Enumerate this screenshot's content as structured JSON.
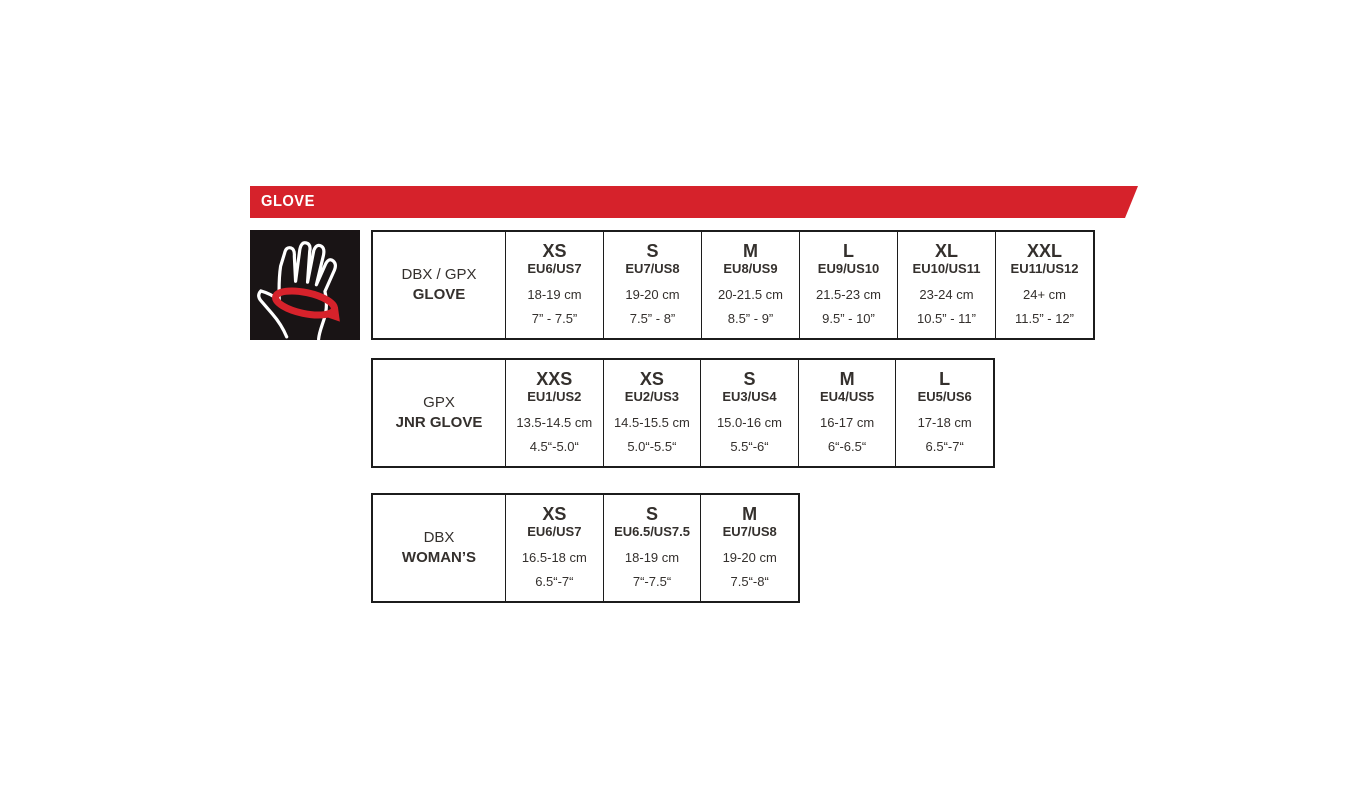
{
  "banner": {
    "label": "GLOVE",
    "bg_color": "#d6222b",
    "text_color": "#ffffff"
  },
  "icon": {
    "name": "hand-measurement-icon",
    "bg_color": "#191415",
    "hand_color": "#ffffff",
    "band_color": "#d6222b"
  },
  "tables": [
    {
      "label_top": "DBX / GPX",
      "label_bottom": "GLOVE",
      "columns": [
        {
          "size": "XS",
          "euus": "EU6/US7",
          "cm": "18-19 cm",
          "inch": "7” - 7.5”"
        },
        {
          "size": "S",
          "euus": "EU7/US8",
          "cm": "19-20 cm",
          "inch": "7.5” - 8”"
        },
        {
          "size": "M",
          "euus": "EU8/US9",
          "cm": "20-21.5 cm",
          "inch": "8.5” - 9”"
        },
        {
          "size": "L",
          "euus": "EU9/US10",
          "cm": "21.5-23 cm",
          "inch": "9.5” - 10”"
        },
        {
          "size": "XL",
          "euus": "EU10/US11",
          "cm": "23-24 cm",
          "inch": "10.5” - 11”"
        },
        {
          "size": "XXL",
          "euus": "EU11/US12",
          "cm": "24+ cm",
          "inch": "11.5” - 12”"
        }
      ]
    },
    {
      "label_top": "GPX",
      "label_bottom": "JNR GLOVE",
      "columns": [
        {
          "size": "XXS",
          "euus": "EU1/US2",
          "cm": "13.5-14.5 cm",
          "inch": "4.5“-5.0“"
        },
        {
          "size": "XS",
          "euus": "EU2/US3",
          "cm": "14.5-15.5 cm",
          "inch": "5.0“-5.5“"
        },
        {
          "size": "S",
          "euus": "EU3/US4",
          "cm": "15.0-16 cm",
          "inch": "5.5“-6“"
        },
        {
          "size": "M",
          "euus": "EU4/US5",
          "cm": "16-17 cm",
          "inch": "6“-6.5“"
        },
        {
          "size": "L",
          "euus": "EU5/US6",
          "cm": "17-18 cm",
          "inch": "6.5“-7“"
        }
      ]
    },
    {
      "label_top": "DBX",
      "label_bottom": "WOMAN’S",
      "columns": [
        {
          "size": "XS",
          "euus": "EU6/US7",
          "cm": "16.5-18 cm",
          "inch": "6.5“-7“"
        },
        {
          "size": "S",
          "euus": "EU6.5/US7.5",
          "cm": "18-19 cm",
          "inch": "7“-7.5“"
        },
        {
          "size": "M",
          "euus": "EU7/US8",
          "cm": "19-20 cm",
          "inch": "7.5“-8“"
        }
      ]
    }
  ]
}
